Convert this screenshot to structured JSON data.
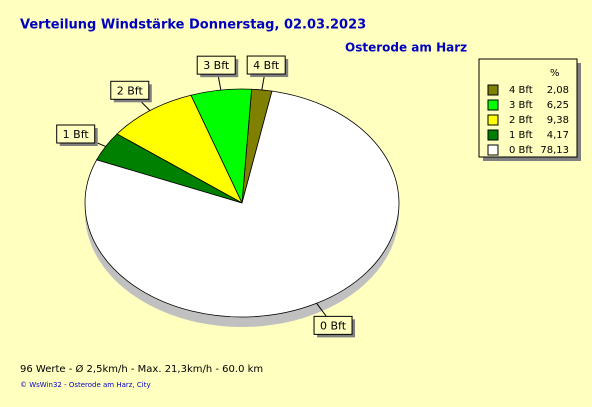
{
  "chart_data": {
    "type": "pie",
    "title": "Verteilung Windstärke  Donnerstag, 02.03.2023",
    "subtitle": "Osterode am Harz",
    "categories": [
      "4 Bft",
      "3 Bft",
      "2 Bft",
      "1 Bft",
      "0 Bft"
    ],
    "values": [
      2.08,
      6.25,
      9.38,
      4.17,
      78.13
    ],
    "value_labels": [
      "2,08",
      "6,25",
      "9,38",
      "4,17",
      "78,13"
    ],
    "colors": [
      "#808000",
      "#00ff00",
      "#ffff00",
      "#008000",
      "#ffffff"
    ],
    "legend_header": "%",
    "notes": [
      "96 Werte   -   Ø 2,5km/h  -  Max. 21,3km/h   -   60.0 km",
      "© WsWin32  -  Osterode am Harz, City"
    ]
  }
}
